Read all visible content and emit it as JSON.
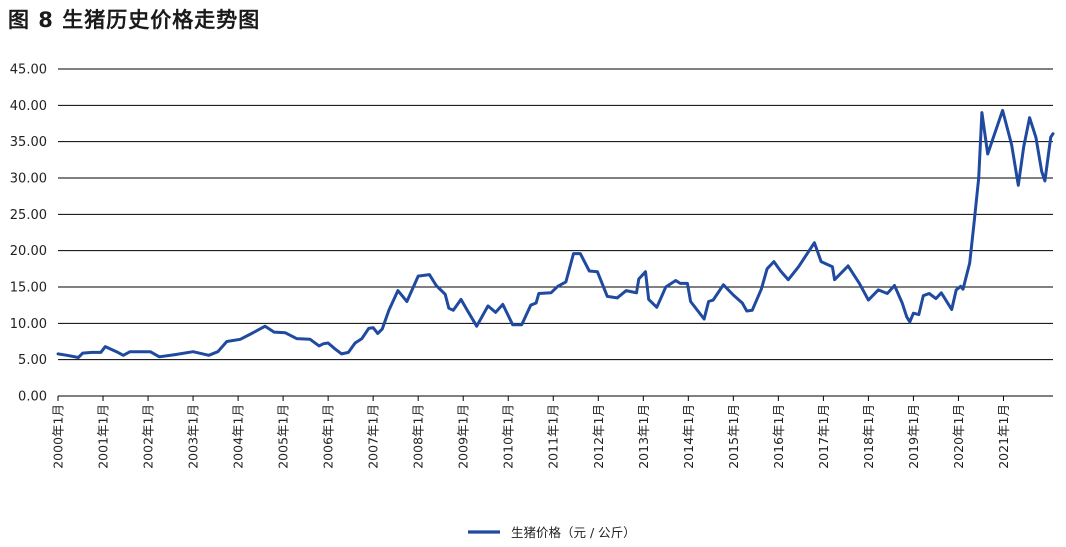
{
  "title": "图 8  生猪历史价格走势图",
  "chart_data": {
    "type": "line",
    "title": "图 8  生猪历史价格走势图",
    "xlabel": "",
    "ylabel": "",
    "ylim": [
      0,
      45
    ],
    "yticks": [
      "0.00",
      "5.00",
      "10.00",
      "15.00",
      "20.00",
      "25.00",
      "30.00",
      "35.00",
      "40.00",
      "45.00"
    ],
    "xticks": [
      "2000年1月",
      "2001年1月",
      "2002年1月",
      "2003年1月",
      "2004年1月",
      "2005年1月",
      "2006年1月",
      "2007年1月",
      "2008年1月",
      "2009年1月",
      "2010年1月",
      "2011年1月",
      "2012年1月",
      "2013年1月",
      "2014年1月",
      "2015年1月",
      "2016年1月",
      "2017年1月",
      "2018年1月",
      "2019年1月",
      "2020年1月",
      "2021年1月"
    ],
    "grid": "horizontal",
    "legend_position": "bottom",
    "series": [
      {
        "name": "生猪价格（元 / 公斤）",
        "color": "#1f4aa0",
        "points": [
          [
            2000.0,
            5.8
          ],
          [
            2000.2,
            5.6
          ],
          [
            2000.45,
            5.3
          ],
          [
            2000.55,
            5.9
          ],
          [
            2000.75,
            6.0
          ],
          [
            2000.95,
            6.0
          ],
          [
            2001.05,
            6.8
          ],
          [
            2001.3,
            6.1
          ],
          [
            2001.45,
            5.6
          ],
          [
            2001.6,
            6.1
          ],
          [
            2001.8,
            6.1
          ],
          [
            2002.05,
            6.1
          ],
          [
            2002.25,
            5.4
          ],
          [
            2002.6,
            5.7
          ],
          [
            2003.0,
            6.1
          ],
          [
            2003.35,
            5.6
          ],
          [
            2003.55,
            6.1
          ],
          [
            2003.75,
            7.5
          ],
          [
            2004.05,
            7.8
          ],
          [
            2004.3,
            8.6
          ],
          [
            2004.6,
            9.6
          ],
          [
            2004.8,
            8.8
          ],
          [
            2005.05,
            8.7
          ],
          [
            2005.3,
            7.9
          ],
          [
            2005.6,
            7.8
          ],
          [
            2005.8,
            6.9
          ],
          [
            2005.9,
            7.2
          ],
          [
            2006.0,
            7.3
          ],
          [
            2006.15,
            6.5
          ],
          [
            2006.3,
            5.8
          ],
          [
            2006.45,
            6.0
          ],
          [
            2006.6,
            7.3
          ],
          [
            2006.75,
            7.9
          ],
          [
            2006.9,
            9.3
          ],
          [
            2007.0,
            9.4
          ],
          [
            2007.1,
            8.6
          ],
          [
            2007.2,
            9.2
          ],
          [
            2007.35,
            11.8
          ],
          [
            2007.55,
            14.5
          ],
          [
            2007.75,
            13.0
          ],
          [
            2008.0,
            16.5
          ],
          [
            2008.25,
            16.7
          ],
          [
            2008.4,
            15.2
          ],
          [
            2008.6,
            14.0
          ],
          [
            2008.68,
            12.1
          ],
          [
            2008.78,
            11.8
          ],
          [
            2008.95,
            13.3
          ],
          [
            2009.08,
            11.9
          ],
          [
            2009.3,
            9.6
          ],
          [
            2009.55,
            12.4
          ],
          [
            2009.72,
            11.5
          ],
          [
            2009.88,
            12.6
          ],
          [
            2010.1,
            9.8
          ],
          [
            2010.3,
            9.8
          ],
          [
            2010.5,
            12.5
          ],
          [
            2010.62,
            12.8
          ],
          [
            2010.68,
            14.1
          ],
          [
            2010.95,
            14.2
          ],
          [
            2011.1,
            15.1
          ],
          [
            2011.28,
            15.7
          ],
          [
            2011.45,
            19.6
          ],
          [
            2011.6,
            19.6
          ],
          [
            2011.8,
            17.2
          ],
          [
            2011.98,
            17.1
          ],
          [
            2012.2,
            13.7
          ],
          [
            2012.42,
            13.5
          ],
          [
            2012.62,
            14.5
          ],
          [
            2012.85,
            14.2
          ],
          [
            2012.9,
            16.1
          ],
          [
            2013.05,
            17.1
          ],
          [
            2013.12,
            13.3
          ],
          [
            2013.3,
            12.2
          ],
          [
            2013.5,
            15.0
          ],
          [
            2013.72,
            15.9
          ],
          [
            2013.82,
            15.5
          ],
          [
            2013.98,
            15.5
          ],
          [
            2014.05,
            13.0
          ],
          [
            2014.35,
            10.6
          ],
          [
            2014.45,
            13.0
          ],
          [
            2014.55,
            13.2
          ],
          [
            2014.78,
            15.3
          ],
          [
            2015.0,
            13.9
          ],
          [
            2015.2,
            12.8
          ],
          [
            2015.3,
            11.7
          ],
          [
            2015.42,
            11.8
          ],
          [
            2015.62,
            14.7
          ],
          [
            2015.75,
            17.5
          ],
          [
            2015.9,
            18.5
          ],
          [
            2016.05,
            17.2
          ],
          [
            2016.22,
            16.0
          ],
          [
            2016.45,
            17.8
          ],
          [
            2016.8,
            21.1
          ],
          [
            2016.95,
            18.5
          ],
          [
            2017.2,
            17.8
          ],
          [
            2017.25,
            16.0
          ],
          [
            2017.55,
            17.9
          ],
          [
            2017.8,
            15.5
          ],
          [
            2018.0,
            13.2
          ],
          [
            2018.22,
            14.6
          ],
          [
            2018.42,
            14.1
          ],
          [
            2018.58,
            15.2
          ],
          [
            2018.75,
            12.8
          ],
          [
            2018.85,
            10.9
          ],
          [
            2018.92,
            10.2
          ],
          [
            2019.0,
            11.4
          ],
          [
            2019.12,
            11.2
          ],
          [
            2019.22,
            13.8
          ],
          [
            2019.35,
            14.1
          ],
          [
            2019.5,
            13.4
          ],
          [
            2019.62,
            14.2
          ],
          [
            2019.85,
            11.9
          ],
          [
            2019.95,
            14.6
          ],
          [
            2020.05,
            15.1
          ],
          [
            2020.1,
            14.7
          ],
          [
            2020.25,
            18.3
          ],
          [
            2020.35,
            24.0
          ],
          [
            2020.45,
            30.0
          ],
          [
            2020.52,
            39.0
          ],
          [
            2020.65,
            33.3
          ],
          [
            2020.98,
            39.3
          ],
          [
            2021.18,
            34.6
          ],
          [
            2021.33,
            29.0
          ],
          [
            2021.45,
            34.3
          ],
          [
            2021.58,
            38.3
          ],
          [
            2021.72,
            35.6
          ],
          [
            2021.85,
            30.9
          ],
          [
            2021.92,
            29.6
          ],
          [
            2022.05,
            35.6
          ],
          [
            2022.1,
            36.1
          ]
        ]
      }
    ]
  }
}
